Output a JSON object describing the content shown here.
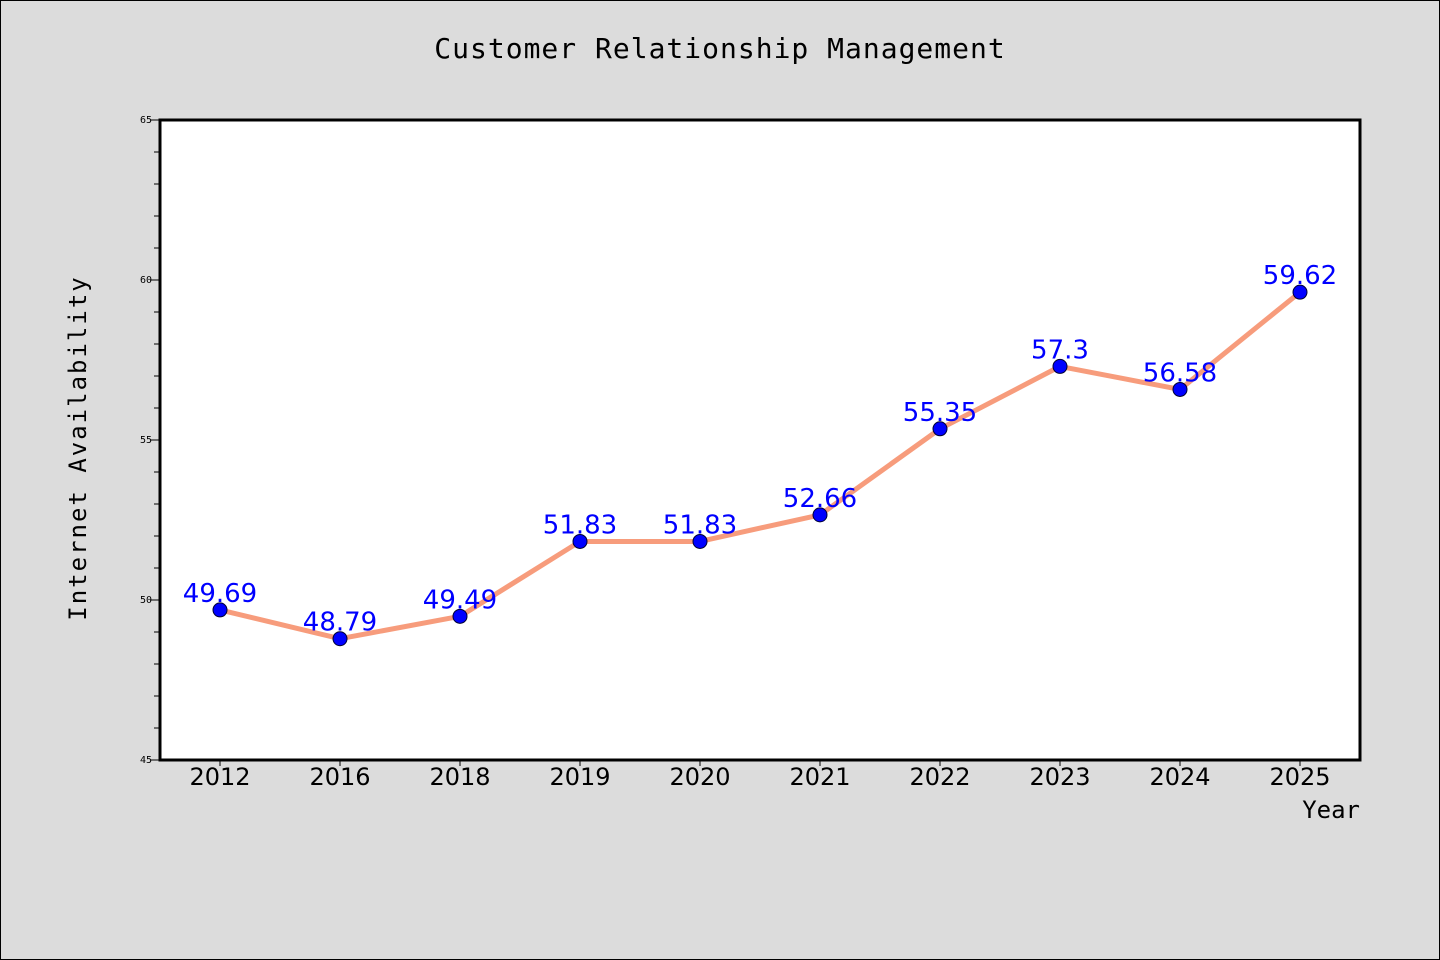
{
  "chart_data": {
    "type": "line",
    "title": "Customer Relationship Management",
    "xlabel": "Year",
    "ylabel": "Internet Availability",
    "categories": [
      "2012",
      "2016",
      "2018",
      "2019",
      "2020",
      "2021",
      "2022",
      "2023",
      "2024",
      "2025"
    ],
    "series": [
      {
        "values": [
          49.69,
          48.79,
          49.49,
          51.83,
          51.83,
          52.66,
          55.35,
          57.3,
          56.58,
          59.62
        ],
        "labels": [
          "49.69",
          "48.79",
          "49.49",
          "51.83",
          "51.83",
          "52.66",
          "55.35",
          "57.3",
          "56.58",
          "59.62"
        ],
        "line_color": "#f79c7c",
        "marker_color": "#0000ff"
      }
    ],
    "ylim": [
      45,
      65
    ],
    "yticks": [
      "45",
      "50",
      "55",
      "60",
      "65"
    ],
    "grid": false,
    "legend": "none",
    "background_color": "#dcdcdc",
    "plot_background_color": "#ffffff",
    "label_color": "#0000ff"
  }
}
